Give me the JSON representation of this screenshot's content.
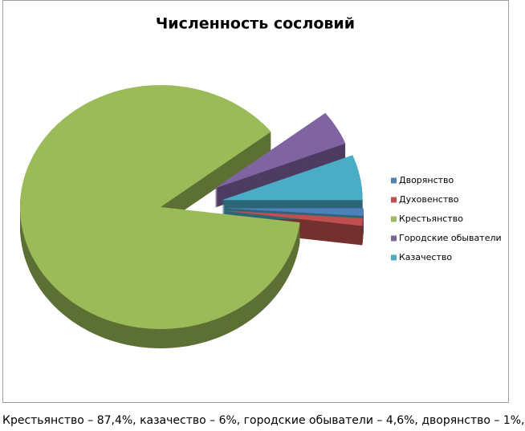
{
  "chart_data": {
    "type": "pie",
    "title": "Численность сословий",
    "categories": [
      "Дворянство",
      "Духовенство",
      "Крестьянство",
      "Городские обыватели",
      "Казачество"
    ],
    "values": [
      1,
      1,
      87.4,
      4.6,
      6
    ],
    "colors": [
      "#4f81bd",
      "#c0504d",
      "#9bbb59",
      "#8064a2",
      "#4bacc6"
    ],
    "legend": "right"
  },
  "caption": "Крестьянство – 87,4%, казачество – 6%, городские обыватели – 4,6%, дворянство – 1%,"
}
